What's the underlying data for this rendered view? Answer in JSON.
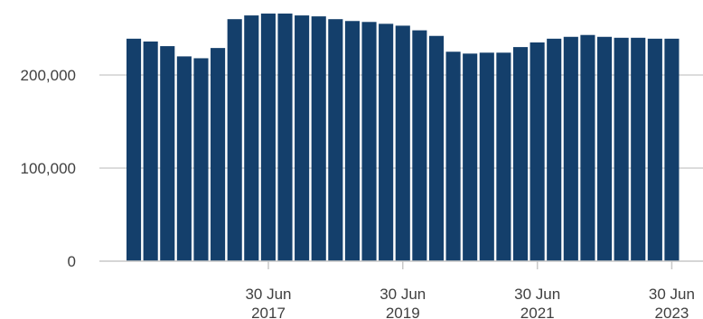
{
  "chart_data": {
    "type": "bar",
    "title": "",
    "xlabel": "",
    "ylabel": "",
    "ylim": [
      0,
      270000
    ],
    "grid": "horizontal",
    "colors": {
      "bar": "#143f6b",
      "grid": "#d0d0d0",
      "axis": "#c8c8c8",
      "text": "#404040"
    },
    "y_ticks": [
      {
        "value": 0,
        "label": "0"
      },
      {
        "value": 100000,
        "label": "100,000"
      },
      {
        "value": 200000,
        "label": "200,000"
      }
    ],
    "x_ticks": [
      {
        "date": "2017-06-30",
        "line1": "30 Jun",
        "line2": "2017"
      },
      {
        "date": "2019-06-30",
        "line1": "30 Jun",
        "line2": "2019"
      },
      {
        "date": "2021-06-30",
        "line1": "30 Jun",
        "line2": "2021"
      },
      {
        "date": "2023-06-30",
        "line1": "30 Jun",
        "line2": "2023"
      }
    ],
    "categories": [
      "2015-06-30",
      "2015-09-30",
      "2015-12-31",
      "2016-03-31",
      "2016-06-30",
      "2016-09-30",
      "2016-12-31",
      "2017-03-31",
      "2017-06-30",
      "2017-09-30",
      "2017-12-31",
      "2018-03-31",
      "2018-06-30",
      "2018-09-30",
      "2018-12-31",
      "2019-03-31",
      "2019-06-30",
      "2019-09-30",
      "2019-12-31",
      "2020-03-31",
      "2020-06-30",
      "2020-09-30",
      "2020-12-31",
      "2021-03-31",
      "2021-06-30",
      "2021-09-30",
      "2021-12-31",
      "2022-03-31",
      "2022-06-30",
      "2022-09-30",
      "2022-12-31",
      "2023-03-31",
      "2023-06-30"
    ],
    "values": [
      239000,
      236000,
      231000,
      220000,
      218000,
      229000,
      260000,
      264000,
      266000,
      266000,
      264000,
      263000,
      260000,
      258000,
      257000,
      255000,
      253000,
      248000,
      242000,
      225000,
      223000,
      224000,
      224000,
      230000,
      235000,
      239000,
      241000,
      243000,
      241000,
      240000,
      240000,
      239000,
      239000
    ]
  }
}
